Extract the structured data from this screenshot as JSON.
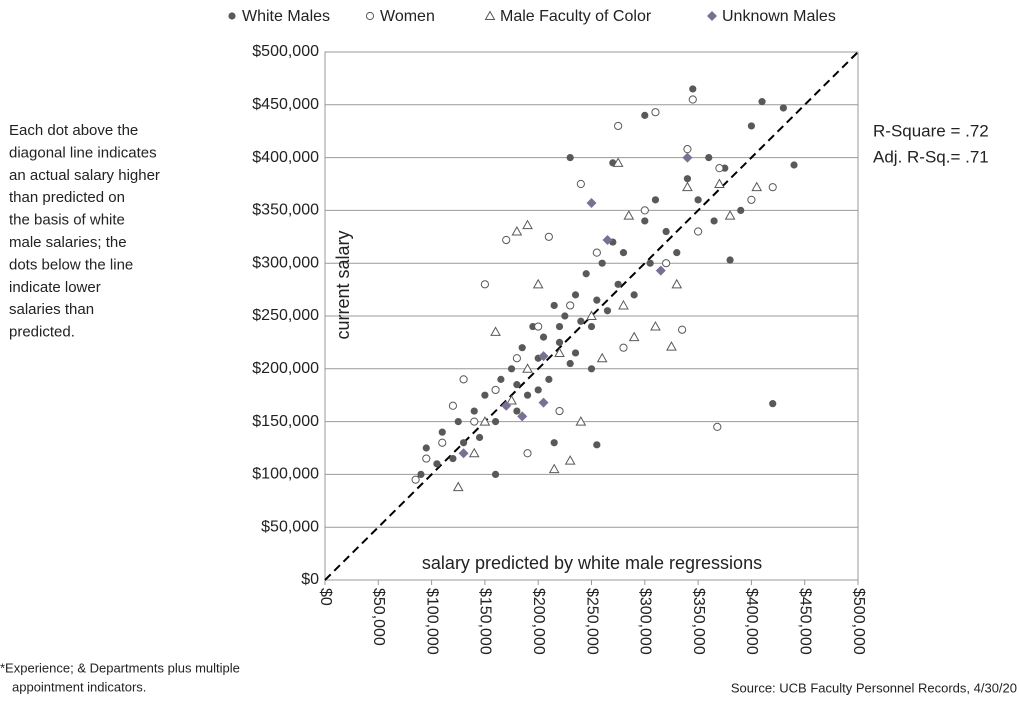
{
  "chart_data": {
    "type": "scatter",
    "x_label": "salary predicted by white male regressions",
    "y_label": "current salary",
    "xlim": [
      0,
      500000
    ],
    "ylim": [
      0,
      500000
    ],
    "xticks": [
      {
        "value": 0,
        "label": "$0"
      },
      {
        "value": 50000,
        "label": "$50,000"
      },
      {
        "value": 100000,
        "label": "$100,000"
      },
      {
        "value": 150000,
        "label": "$150,000"
      },
      {
        "value": 200000,
        "label": "$200,000"
      },
      {
        "value": 250000,
        "label": "$250,000"
      },
      {
        "value": 300000,
        "label": "$300,000"
      },
      {
        "value": 350000,
        "label": "$350,000"
      },
      {
        "value": 400000,
        "label": "$400,000"
      },
      {
        "value": 450000,
        "label": "$450,000"
      },
      {
        "value": 500000,
        "label": "$500,000"
      }
    ],
    "yticks": [
      {
        "value": 0,
        "label": "$0"
      },
      {
        "value": 50000,
        "label": "$50,000"
      },
      {
        "value": 100000,
        "label": "$100,000"
      },
      {
        "value": 150000,
        "label": "$150,000"
      },
      {
        "value": 200000,
        "label": "$200,000"
      },
      {
        "value": 250000,
        "label": "$250,000"
      },
      {
        "value": 300000,
        "label": "$300,000"
      },
      {
        "value": 350000,
        "label": "$350,000"
      },
      {
        "value": 400000,
        "label": "$400,000"
      },
      {
        "value": 450000,
        "label": "$450,000"
      },
      {
        "value": 500000,
        "label": "$500,000"
      }
    ],
    "grid": true,
    "legend": "top",
    "annotation_left": [
      "Each dot above the",
      "diagonal line indicates",
      "an actual salary higher",
      "than predicted on",
      "the basis of white",
      "male salaries; the",
      "dots below the line",
      "indicate lower",
      "salaries than",
      "predicted."
    ],
    "annotation_right": [
      "R-Square = .72",
      "Adj. R-Sq.= .71"
    ],
    "footnote": [
      "*Experience; & Departments plus multiple",
      "appointment indicators."
    ],
    "source": "Source: UCB Faculty Personnel Records, 4/30/20",
    "series": [
      {
        "name": "White Males",
        "marker": "circle-filled",
        "color": "#595959",
        "x": [
          90000,
          95000,
          105000,
          110000,
          120000,
          125000,
          130000,
          140000,
          145000,
          150000,
          160000,
          165000,
          170000,
          175000,
          180000,
          185000,
          190000,
          195000,
          200000,
          205000,
          210000,
          215000,
          220000,
          225000,
          230000,
          235000,
          240000,
          245000,
          250000,
          255000,
          260000,
          265000,
          270000,
          275000,
          280000,
          290000,
          300000,
          305000,
          310000,
          320000,
          330000,
          340000,
          345000,
          350000,
          360000,
          365000,
          375000,
          390000,
          400000,
          410000,
          420000,
          430000,
          440000,
          230000,
          270000,
          255000,
          215000,
          160000,
          300000,
          380000,
          250000,
          180000,
          220000,
          200000,
          235000
        ],
        "y": [
          100000,
          125000,
          110000,
          140000,
          115000,
          150000,
          130000,
          160000,
          135000,
          175000,
          150000,
          190000,
          165000,
          200000,
          185000,
          220000,
          175000,
          240000,
          210000,
          230000,
          190000,
          260000,
          225000,
          250000,
          205000,
          270000,
          245000,
          290000,
          240000,
          265000,
          300000,
          255000,
          320000,
          280000,
          310000,
          270000,
          340000,
          300000,
          360000,
          330000,
          310000,
          380000,
          465000,
          360000,
          400000,
          340000,
          390000,
          350000,
          430000,
          453000,
          167000,
          447000,
          393000,
          400000,
          395000,
          128000,
          130000,
          100000,
          440000,
          303000,
          200000,
          160000,
          240000,
          180000,
          215000
        ]
      },
      {
        "name": "Women",
        "marker": "circle-open",
        "color": "#595959",
        "x": [
          85000,
          95000,
          110000,
          120000,
          130000,
          140000,
          150000,
          160000,
          170000,
          180000,
          200000,
          210000,
          220000,
          240000,
          255000,
          275000,
          280000,
          300000,
          310000,
          320000,
          335000,
          340000,
          345000,
          350000,
          370000,
          368000,
          400000,
          420000,
          190000,
          230000
        ],
        "y": [
          95000,
          115000,
          130000,
          165000,
          190000,
          150000,
          280000,
          180000,
          322000,
          210000,
          240000,
          325000,
          160000,
          375000,
          310000,
          430000,
          220000,
          350000,
          443000,
          300000,
          237000,
          408000,
          455000,
          330000,
          390000,
          145000,
          360000,
          372000,
          120000,
          260000
        ]
      },
      {
        "name": "Male Faculty of Color",
        "marker": "triangle-open",
        "color": "#595959",
        "x": [
          125000,
          140000,
          150000,
          160000,
          175000,
          180000,
          190000,
          200000,
          215000,
          220000,
          230000,
          240000,
          250000,
          260000,
          275000,
          280000,
          290000,
          310000,
          325000,
          330000,
          340000,
          370000,
          380000,
          405000,
          190000,
          285000
        ],
        "y": [
          88000,
          120000,
          150000,
          235000,
          170000,
          330000,
          200000,
          280000,
          105000,
          215000,
          113000,
          150000,
          250000,
          210000,
          395000,
          260000,
          230000,
          240000,
          221000,
          280000,
          372000,
          375000,
          345000,
          372000,
          336000,
          345000
        ]
      },
      {
        "name": "Unknown Males",
        "marker": "diamond",
        "color": "#7b6f93",
        "x": [
          130000,
          170000,
          185000,
          205000,
          205000,
          250000,
          265000,
          315000,
          340000
        ],
        "y": [
          120000,
          165000,
          155000,
          212000,
          168000,
          357000,
          322000,
          293000,
          400000
        ]
      }
    ]
  }
}
